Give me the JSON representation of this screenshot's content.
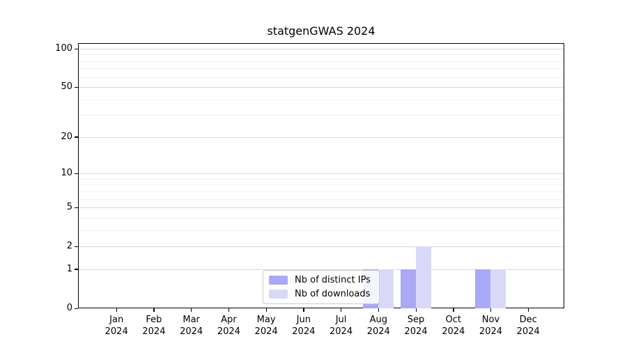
{
  "title": "statgenGWAS 2024",
  "colors": {
    "distinct_ips": "#a9a9f5",
    "downloads": "#d9d9f7",
    "grid_major": "#d8d8d8",
    "grid_minor": "#f0f0f0",
    "axis": "#000000",
    "legend_border": "#cccccc"
  },
  "legend": {
    "items": [
      {
        "label": "Nb of distinct IPs",
        "color_key": "distinct_ips"
      },
      {
        "label": "Nb of downloads",
        "color_key": "downloads"
      }
    ]
  },
  "y_axis": {
    "scale": "log1p",
    "labeled_ticks": [
      0,
      1,
      2,
      5,
      10,
      20,
      50,
      100
    ],
    "minor_gridlines": [
      3,
      4,
      6,
      7,
      8,
      9,
      30,
      40,
      60,
      70,
      80,
      90
    ]
  },
  "x_axis": {
    "months": [
      "Jan",
      "Feb",
      "Mar",
      "Apr",
      "May",
      "Jun",
      "Jul",
      "Aug",
      "Sep",
      "Oct",
      "Nov",
      "Dec"
    ],
    "year": "2024"
  },
  "chart_data": {
    "type": "bar",
    "title": "statgenGWAS 2024",
    "categories": [
      "Jan 2024",
      "Feb 2024",
      "Mar 2024",
      "Apr 2024",
      "May 2024",
      "Jun 2024",
      "Jul 2024",
      "Aug 2024",
      "Sep 2024",
      "Oct 2024",
      "Nov 2024",
      "Dec 2024"
    ],
    "series": [
      {
        "name": "Nb of distinct IPs",
        "color": "#a9a9f5",
        "values": [
          0,
          0,
          0,
          0,
          0,
          0,
          0,
          1,
          1,
          0,
          1,
          0
        ]
      },
      {
        "name": "Nb of downloads",
        "color": "#d9d9f7",
        "values": [
          0,
          0,
          0,
          0,
          0,
          0,
          0,
          1,
          2,
          0,
          1,
          0
        ]
      }
    ],
    "xlabel": "",
    "ylabel": "",
    "yscale": "log1p",
    "ylim": [
      0,
      110
    ],
    "y_ticks": [
      0,
      1,
      2,
      5,
      10,
      20,
      50,
      100
    ],
    "grid": true,
    "legend_position": "inside-bottom-center"
  }
}
